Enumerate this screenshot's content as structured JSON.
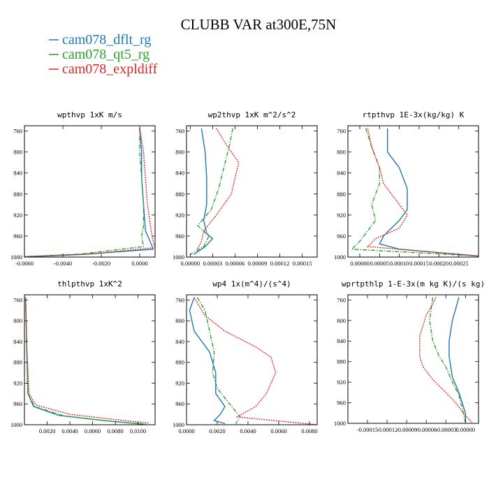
{
  "title": "CLUBB VAR at300E,75N",
  "legend": [
    {
      "label": "cam078_dflt_rg",
      "color": "#1f77b4"
    },
    {
      "label": "cam078_qt5_rg",
      "color": "#2ca02c"
    },
    {
      "label": "cam078_expldiff",
      "color": "#d62728"
    }
  ],
  "chart_data": [
    {
      "type": "line",
      "title": "wpthvp  1xK m/s",
      "xlim": [
        -0.006,
        0.0008
      ],
      "ylim": [
        1000,
        750
      ],
      "xticks": [
        -0.006,
        -0.004,
        -0.002,
        0.0
      ],
      "xtick_labels": [
        "-0.0060",
        "-0.0040",
        "-0.0020",
        "0.0000"
      ],
      "yticks": [
        760,
        800,
        840,
        880,
        920,
        960,
        1000
      ],
      "ytick_labels": [
        "760",
        "800",
        "840",
        "880",
        "920",
        "960",
        "1000"
      ],
      "series": [
        {
          "name": "cam078_dflt_rg",
          "color": "#1f77b4",
          "dash": "solid",
          "points": [
            [
              0.0,
              755
            ],
            [
              0.0001,
              800
            ],
            [
              0.0001,
              850
            ],
            [
              0.0002,
              900
            ],
            [
              0.0003,
              950
            ],
            [
              0.0006,
              975
            ],
            [
              0.0007,
              985
            ],
            [
              -0.003,
              995
            ],
            [
              -0.0055,
              999
            ]
          ]
        },
        {
          "name": "cam078_qt5_rg",
          "color": "#2ca02c",
          "dash": "dashdot",
          "points": [
            [
              0.0,
              755
            ],
            [
              0.0,
              800
            ],
            [
              0.0001,
              850
            ],
            [
              0.0002,
              900
            ],
            [
              0.0002,
              940
            ],
            [
              0.0001,
              960
            ],
            [
              0.0002,
              980
            ],
            [
              -0.003,
              994
            ],
            [
              -0.0058,
              999
            ]
          ]
        },
        {
          "name": "cam078_expldiff",
          "color": "#d62728",
          "dash": "dot",
          "points": [
            [
              0.0,
              755
            ],
            [
              0.0002,
              800
            ],
            [
              0.0003,
              850
            ],
            [
              0.0004,
              900
            ],
            [
              0.0006,
              950
            ],
            [
              0.0007,
              970
            ],
            [
              0.0008,
              982
            ],
            [
              -0.0025,
              994
            ],
            [
              -0.006,
              999
            ]
          ]
        }
      ]
    },
    {
      "type": "line",
      "title": "wp2thvp  1xK m^2/s^2",
      "xlim": [
        -5e-06,
        0.00017
      ],
      "ylim": [
        1000,
        750
      ],
      "xticks": [
        0.0,
        3e-05,
        6e-05,
        9e-05,
        0.00012,
        0.00015
      ],
      "xtick_labels": [
        "0.00000",
        "0.00003",
        "0.00006",
        "0.00009",
        "0.00012",
        "0.00015"
      ],
      "yticks": [
        760,
        800,
        840,
        880,
        920,
        960,
        1000
      ],
      "ytick_labels": [
        "760",
        "800",
        "840",
        "880",
        "920",
        "960",
        "1000"
      ],
      "series": [
        {
          "name": "cam078_dflt_rg",
          "color": "#1f77b4",
          "dash": "solid",
          "points": [
            [
              1.5e-05,
              755
            ],
            [
              2e-05,
              800
            ],
            [
              2.2e-05,
              850
            ],
            [
              2.2e-05,
              900
            ],
            [
              1.8e-05,
              930
            ],
            [
              2.2e-05,
              955
            ],
            [
              3e-05,
              965
            ],
            [
              2e-05,
              980
            ],
            [
              5e-06,
              995
            ]
          ]
        },
        {
          "name": "cam078_qt5_rg",
          "color": "#2ca02c",
          "dash": "dashdot",
          "points": [
            [
              5.7e-05,
              755
            ],
            [
              5.2e-05,
              790
            ],
            [
              4.5e-05,
              830
            ],
            [
              3.8e-05,
              870
            ],
            [
              2.8e-05,
              910
            ],
            [
              1e-05,
              940
            ],
            [
              2.5e-05,
              960
            ],
            [
              1.8e-05,
              980
            ],
            [
              0.0,
              995
            ]
          ]
        },
        {
          "name": "cam078_expldiff",
          "color": "#d62728",
          "dash": "dot",
          "points": [
            [
              3.5e-05,
              755
            ],
            [
              5e-05,
              790
            ],
            [
              6.5e-05,
              820
            ],
            [
              5.5e-05,
              880
            ],
            [
              3.5e-05,
              920
            ],
            [
              1.8e-05,
              950
            ],
            [
              1.5e-05,
              970
            ],
            [
              8e-06,
              990
            ]
          ]
        }
      ]
    },
    {
      "type": "line",
      "title": "rtpthvp  1E-3x(kg/kg) K",
      "xlim": [
        -3e-05,
        0.0003
      ],
      "ylim": [
        1000,
        750
      ],
      "xticks": [
        0.0,
        5e-05,
        0.0001,
        0.00015,
        0.0002,
        0.00025
      ],
      "xtick_labels": [
        "0.00000",
        "0.00005",
        "0.00010",
        "0.00015",
        "0.00020",
        "0.00025"
      ],
      "yticks": [
        760,
        800,
        840,
        880,
        920,
        960,
        1000
      ],
      "ytick_labels": [
        "760",
        "800",
        "840",
        "880",
        "920",
        "960",
        "1000"
      ],
      "series": [
        {
          "name": "cam078_dflt_rg",
          "color": "#1f77b4",
          "dash": "solid",
          "points": [
            [
              7e-05,
              755
            ],
            [
              7e-05,
              800
            ],
            [
              0.0001,
              830
            ],
            [
              0.00012,
              870
            ],
            [
              0.00012,
              910
            ],
            [
              0.0001,
              930
            ],
            [
              6e-05,
              960
            ],
            [
              5e-05,
              975
            ],
            [
              0.0001,
              985
            ],
            [
              0.0003,
              998
            ]
          ]
        },
        {
          "name": "cam078_qt5_rg",
          "color": "#2ca02c",
          "dash": "dashdot",
          "points": [
            [
              1.5e-05,
              755
            ],
            [
              3e-05,
              790
            ],
            [
              5e-05,
              830
            ],
            [
              5e-05,
              860
            ],
            [
              3e-05,
              900
            ],
            [
              4e-05,
              930
            ],
            [
              2e-05,
              950
            ],
            [
              0.0,
              970
            ],
            [
              -2e-05,
              985
            ],
            [
              0.0003,
              998
            ]
          ]
        },
        {
          "name": "cam078_expldiff",
          "color": "#d62728",
          "dash": "dot",
          "points": [
            [
              2e-05,
              755
            ],
            [
              3e-05,
              790
            ],
            [
              5e-05,
              830
            ],
            [
              6e-05,
              860
            ],
            [
              9e-05,
              890
            ],
            [
              0.00012,
              920
            ],
            [
              0.0001,
              945
            ],
            [
              4e-05,
              965
            ],
            [
              2e-05,
              980
            ],
            [
              0.0003,
              998
            ]
          ]
        }
      ]
    },
    {
      "type": "line",
      "title": "thlpthvp  1xK^2",
      "xlim": [
        0.0,
        0.0115
      ],
      "ylim": [
        1000,
        750
      ],
      "xticks": [
        0.002,
        0.004,
        0.006,
        0.008,
        0.01
      ],
      "xtick_labels": [
        "0.0020",
        "0.0040",
        "0.0060",
        "0.0080",
        "0.0100"
      ],
      "yticks": [
        760,
        800,
        840,
        880,
        920,
        960,
        1000
      ],
      "ytick_labels": [
        "760",
        "800",
        "840",
        "880",
        "920",
        "960",
        "1000"
      ],
      "series": [
        {
          "name": "cam078_dflt_rg",
          "color": "#1f77b4",
          "dash": "solid",
          "points": [
            [
              0.0001,
              755
            ],
            [
              0.0002,
              850
            ],
            [
              0.0003,
              940
            ],
            [
              0.0008,
              965
            ],
            [
              0.003,
              982
            ],
            [
              0.007,
              992
            ],
            [
              0.0105,
              999
            ]
          ]
        },
        {
          "name": "cam078_qt5_rg",
          "color": "#2ca02c",
          "dash": "dashdot",
          "points": [
            [
              0.0001,
              755
            ],
            [
              0.0002,
              850
            ],
            [
              0.0003,
              940
            ],
            [
              0.0009,
              965
            ],
            [
              0.0035,
              983
            ],
            [
              0.0075,
              993
            ],
            [
              0.0107,
              999
            ]
          ]
        },
        {
          "name": "cam078_expldiff",
          "color": "#d62728",
          "dash": "dot",
          "points": [
            [
              0.0001,
              755
            ],
            [
              0.0002,
              850
            ],
            [
              0.0004,
              940
            ],
            [
              0.001,
              962
            ],
            [
              0.004,
              980
            ],
            [
              0.008,
              990
            ],
            [
              0.011,
              997
            ]
          ]
        }
      ]
    },
    {
      "type": "line",
      "title": "wp4  1x(m^4)/(s^4)",
      "xlim": [
        0.0,
        0.0085
      ],
      "ylim": [
        1000,
        750
      ],
      "xticks": [
        0.0,
        0.002,
        0.004,
        0.006,
        0.008
      ],
      "xtick_labels": [
        "0.0000",
        "0.0020",
        "0.0040",
        "0.0060",
        "0.0080"
      ],
      "yticks": [
        760,
        800,
        840,
        880,
        920,
        960,
        1000
      ],
      "ytick_labels": [
        "760",
        "800",
        "840",
        "880",
        "920",
        "960",
        "1000"
      ],
      "series": [
        {
          "name": "cam078_dflt_rg",
          "color": "#1f77b4",
          "dash": "solid",
          "points": [
            [
              0.0005,
              755
            ],
            [
              0.0002,
              780
            ],
            [
              0.0005,
              820
            ],
            [
              0.0015,
              860
            ],
            [
              0.0019,
              900
            ],
            [
              0.0019,
              940
            ],
            [
              0.0025,
              965
            ],
            [
              0.0022,
              980
            ],
            [
              0.0018,
              992
            ],
            [
              0.0025,
              998
            ]
          ]
        },
        {
          "name": "cam078_qt5_rg",
          "color": "#2ca02c",
          "dash": "dashdot",
          "points": [
            [
              0.0007,
              755
            ],
            [
              0.0012,
              780
            ],
            [
              0.0015,
              820
            ],
            [
              0.0018,
              860
            ],
            [
              0.0017,
              900
            ],
            [
              0.002,
              930
            ],
            [
              0.0028,
              960
            ],
            [
              0.0035,
              985
            ],
            [
              0.0032,
              998
            ]
          ]
        },
        {
          "name": "cam078_expldiff",
          "color": "#d62728",
          "dash": "dot",
          "points": [
            [
              0.0005,
              755
            ],
            [
              0.0012,
              790
            ],
            [
              0.0025,
              820
            ],
            [
              0.0045,
              850
            ],
            [
              0.0055,
              870
            ],
            [
              0.0058,
              900
            ],
            [
              0.0052,
              940
            ],
            [
              0.0045,
              965
            ],
            [
              0.0033,
              985
            ],
            [
              0.0085,
              1000
            ]
          ]
        }
      ]
    },
    {
      "type": "line",
      "title": "wprtpthlp  1-E-3x(m kg K)/(s kg)",
      "xlim": [
        -0.00018,
        2e-05
      ],
      "ylim": [
        1000,
        750
      ],
      "xticks": [
        -0.00015,
        -0.00012,
        -9e-05,
        -6e-05,
        -3e-05,
        0.0
      ],
      "xtick_labels": [
        "-0.00015",
        "-0.00012",
        "-0.00009",
        "-0.00006",
        "-0.00003",
        "0.00000"
      ],
      "yticks": [
        760,
        800,
        840,
        880,
        920,
        960,
        1000
      ],
      "ytick_labels": [
        "760",
        "800",
        "840",
        "880",
        "920",
        "960",
        "1000"
      ],
      "series": [
        {
          "name": "cam078_dflt_rg",
          "color": "#1f77b4",
          "dash": "solid",
          "points": [
            [
              -1e-05,
              755
            ],
            [
              -2e-05,
              800
            ],
            [
              -2.5e-05,
              840
            ],
            [
              -2.5e-05,
              870
            ],
            [
              -2e-05,
              910
            ],
            [
              -1e-05,
              940
            ],
            [
              -5e-06,
              960
            ],
            [
              0.0,
              980
            ],
            [
              0.0,
              998
            ]
          ]
        },
        {
          "name": "cam078_qt5_rg",
          "color": "#2ca02c",
          "dash": "dashdot",
          "points": [
            [
              -5e-05,
              755
            ],
            [
              -5.5e-05,
              800
            ],
            [
              -5e-05,
              840
            ],
            [
              -4e-05,
              870
            ],
            [
              -3e-05,
              890
            ],
            [
              -2e-05,
              920
            ],
            [
              -1e-05,
              945
            ],
            [
              -5e-06,
              970
            ],
            [
              0.0,
              998
            ]
          ]
        },
        {
          "name": "cam078_expldiff",
          "color": "#d62728",
          "dash": "dot",
          "points": [
            [
              -4.5e-05,
              755
            ],
            [
              -6e-05,
              790
            ],
            [
              -7e-05,
              830
            ],
            [
              -7e-05,
              870
            ],
            [
              -6.5e-05,
              890
            ],
            [
              -5e-05,
              915
            ],
            [
              -3e-05,
              940
            ],
            [
              -1.5e-05,
              960
            ],
            [
              0.0,
              985
            ],
            [
              1e-05,
              998
            ]
          ]
        }
      ]
    }
  ]
}
